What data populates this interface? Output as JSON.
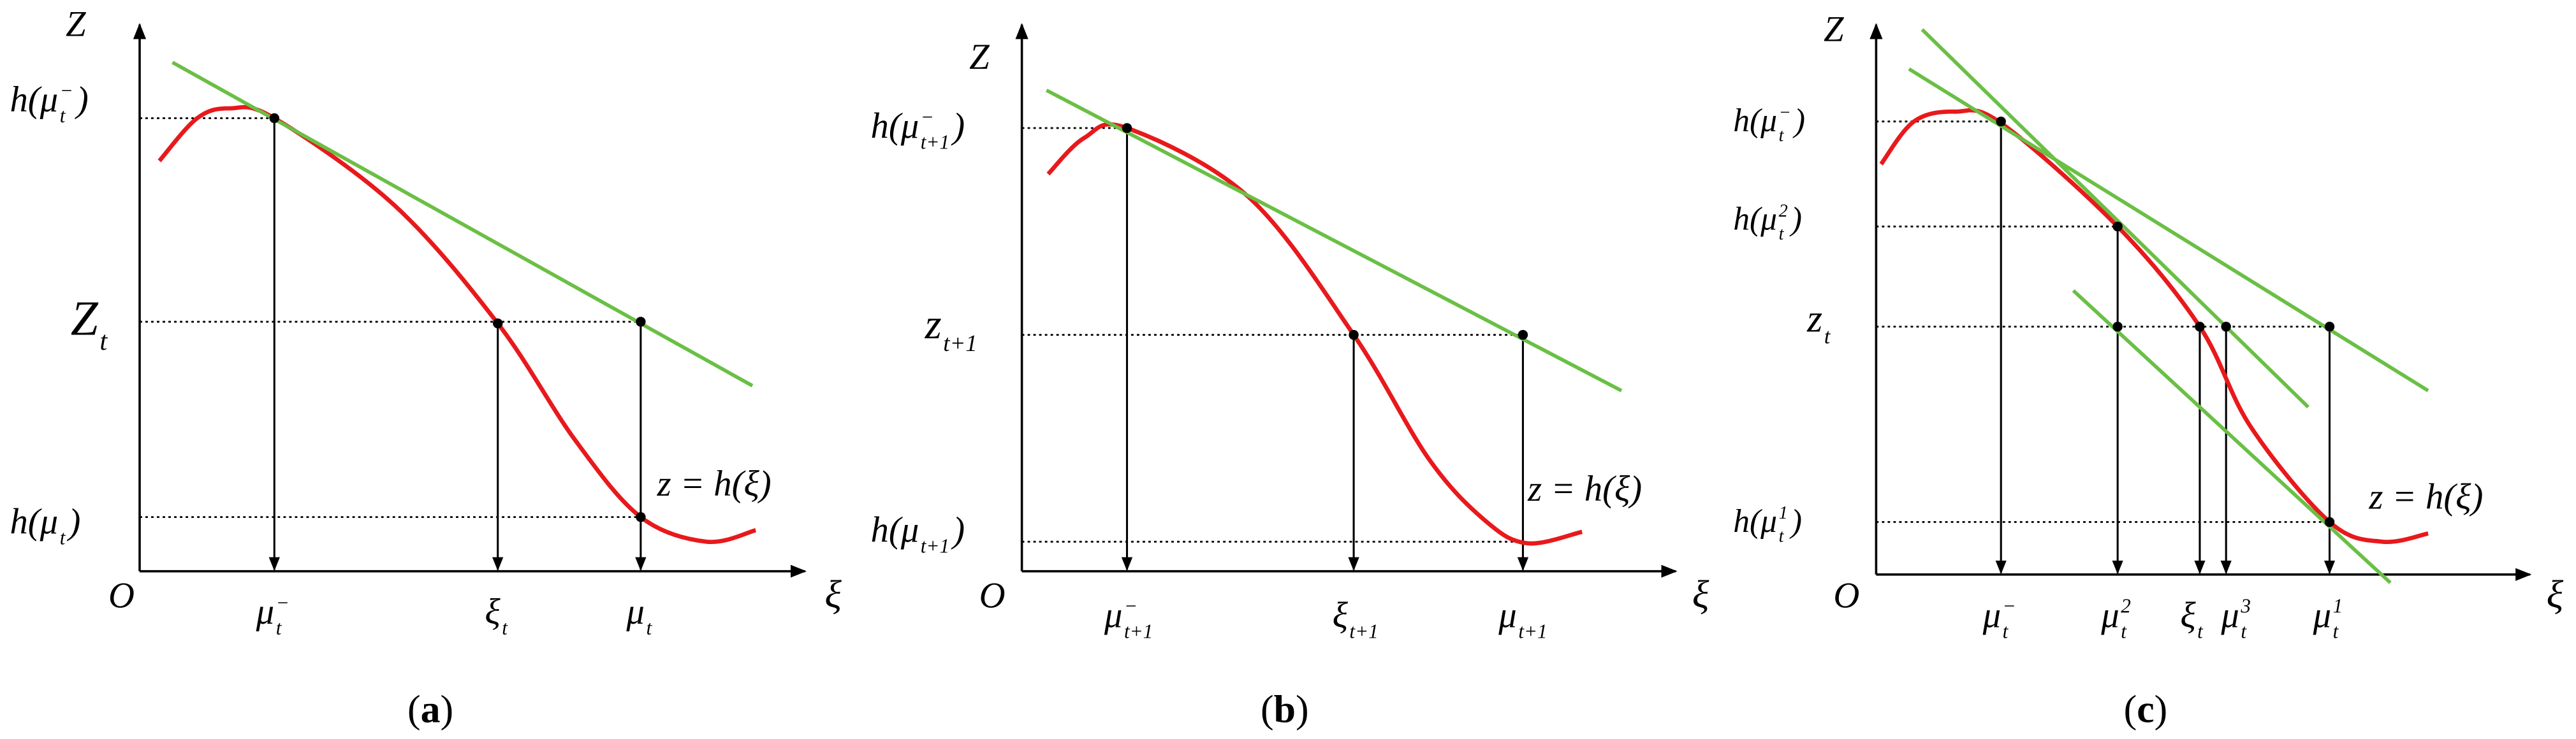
{
  "panels": [
    {
      "axis_z": "Z",
      "origin": "O",
      "axis_xi": "ξ",
      "curve_label": "z = h(ξ)",
      "caption": {
        "open": "(",
        "letter": "a",
        "close": ")"
      },
      "y_labels": [
        {
          "base": "h(μ",
          "sub": "t",
          "sup": "−",
          "tail": ")"
        },
        {
          "base": "Z",
          "sub": "t"
        },
        {
          "base": "h(μ",
          "sub": "t",
          "tail": ")"
        }
      ],
      "x_labels": [
        {
          "base": "μ",
          "sub": "t",
          "sup": "−"
        },
        {
          "base": "ξ",
          "sub": "t"
        },
        {
          "base": "μ",
          "sub": "t"
        }
      ]
    },
    {
      "axis_z": "Z",
      "origin": "O",
      "axis_xi": "ξ",
      "curve_label": "z = h(ξ)",
      "caption": {
        "open": "(",
        "letter": "b",
        "close": ")"
      },
      "y_labels": [
        {
          "base": "h(μ",
          "sub": "t+1",
          "sup": "−",
          "tail": ")"
        },
        {
          "base": "z",
          "sub": "t+1"
        },
        {
          "base": "h(μ",
          "sub": "t+1",
          "tail": ")"
        }
      ],
      "x_labels": [
        {
          "base": "μ",
          "sub": "t+1",
          "sup": "−"
        },
        {
          "base": "ξ",
          "sub": "t+1"
        },
        {
          "base": "μ",
          "sub": "t+1"
        }
      ]
    },
    {
      "axis_z": "Z",
      "origin": "O",
      "axis_xi": "ξ",
      "curve_label": "z = h(ξ)",
      "caption": {
        "open": "(",
        "letter": "c",
        "close": ")"
      },
      "y_labels": [
        {
          "base": "h(μ",
          "sub": "t",
          "sup": "−",
          "tail": ")"
        },
        {
          "base": "h(μ",
          "sub": "t",
          "sup": "2",
          "tail": ")"
        },
        {
          "base": "z",
          "sub": "t"
        },
        {
          "base": "h(μ",
          "sub": "t",
          "sup": "1",
          "tail": ")"
        }
      ],
      "x_labels": [
        {
          "base": "μ",
          "sub": "t",
          "sup": "−"
        },
        {
          "base": "μ",
          "sub": "t",
          "sup": "2"
        },
        {
          "base": "ξ",
          "sub": "t"
        },
        {
          "base": "μ",
          "sub": "t",
          "sup": "3"
        },
        {
          "base": "μ",
          "sub": "t",
          "sup": "1"
        }
      ]
    }
  ]
}
